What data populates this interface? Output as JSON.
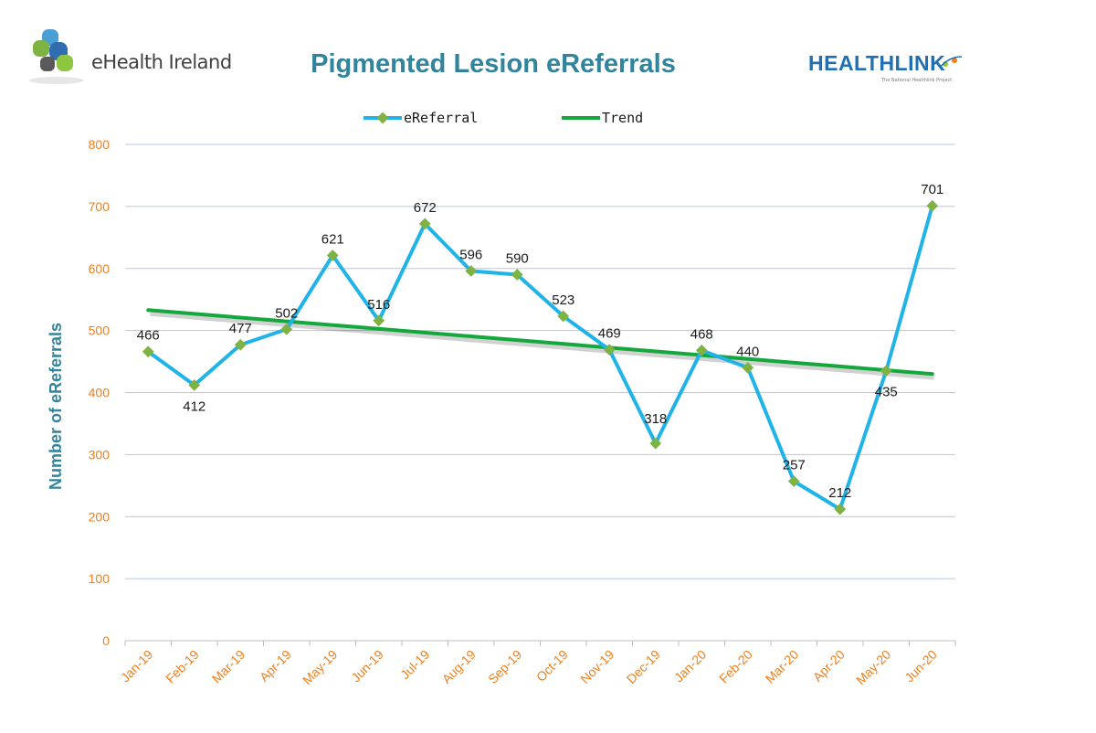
{
  "logos": {
    "left_text": "eHealth Ireland",
    "right_text": "HEALTHLINK",
    "right_tagline": "The National Healthlink Project"
  },
  "colors": {
    "series": "#1fb3e8",
    "trend": "#14a83c",
    "marker": "#7cb342",
    "axis_text": "#f07f1b",
    "ylabel": "#31849b",
    "grid": "#b4c7e7"
  },
  "chart_data": {
    "type": "line",
    "title": "Pigmented Lesion eReferrals",
    "xlabel": "",
    "ylabel": "Number of eReferrals",
    "ylim": [
      0,
      800
    ],
    "yticks": [
      0,
      100,
      200,
      300,
      400,
      500,
      600,
      700,
      800
    ],
    "categories": [
      "Jan-19",
      "Feb-19",
      "Mar-19",
      "Apr-19",
      "May-19",
      "Jun-19",
      "Jul-19",
      "Aug-19",
      "Sep-19",
      "Oct-19",
      "Nov-19",
      "Dec-19",
      "Jan-20",
      "Feb-20",
      "Mar-20",
      "Apr-20",
      "May-20",
      "Jun-20"
    ],
    "series": [
      {
        "name": "eReferral",
        "values": [
          466,
          412,
          477,
          502,
          621,
          516,
          672,
          596,
          590,
          523,
          469,
          318,
          468,
          440,
          257,
          212,
          435,
          701
        ]
      }
    ],
    "trend": {
      "name": "Trend",
      "start": 533,
      "end": 430
    },
    "legend": "top-center",
    "grid": true
  }
}
